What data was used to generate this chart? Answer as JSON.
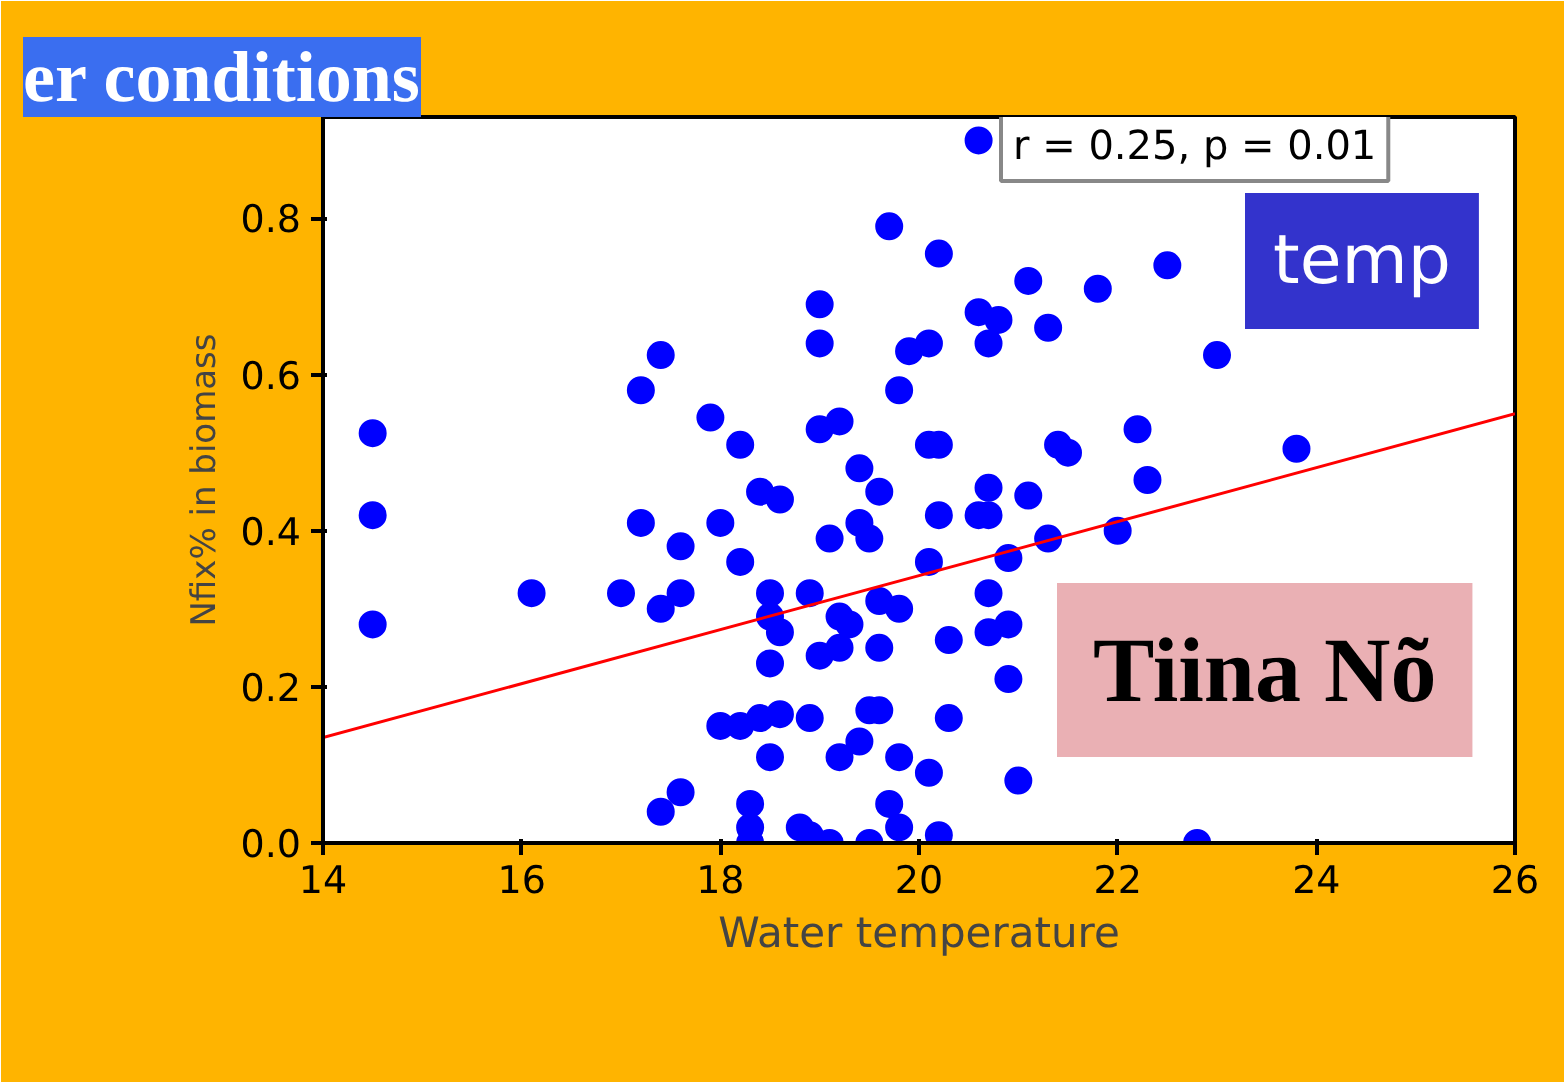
{
  "chart_data": {
    "type": "scatter",
    "title": "er conditions",
    "xlabel": "Water temperature",
    "ylabel": "Nfix% in biomass",
    "xlim": [
      14,
      26
    ],
    "ylim": [
      0,
      0.93
    ],
    "xticks": [
      14,
      16,
      18,
      20,
      22,
      24,
      26
    ],
    "yticks": [
      {
        "value": 0,
        "label": "0.0"
      },
      0.2,
      0.4,
      0.6,
      0.8
    ],
    "grid": false,
    "marker": "circle",
    "annotations": [
      "r = 0.25, p = 0.01",
      "temp",
      "Tiina Nõ"
    ],
    "series": [
      {
        "color": "#0000ff",
        "x": [
          14.5,
          14.5,
          14.5,
          16.1,
          17.0,
          17.2,
          17.4,
          17.2,
          17.4,
          17.6,
          17.6,
          17.9,
          18.0,
          17.4,
          17.6,
          18.2,
          18.4,
          18.2,
          18.0,
          18.2,
          18.4,
          18.5,
          18.5,
          18.5,
          18.3,
          18.3,
          18.6,
          19.0,
          19.0,
          19.0,
          19.2,
          19.4,
          18.9,
          19.1,
          18.6,
          18.5,
          18.6,
          18.9,
          19.0,
          19.2,
          19.2,
          19.3,
          19.4,
          19.5,
          19.6,
          18.8,
          18.9,
          19.2,
          19.4,
          19.5,
          19.7,
          20.2,
          19.8,
          19.9,
          20.1,
          20.1,
          20.2,
          19.6,
          19.6,
          19.8,
          19.6,
          20.1,
          20.3,
          20.3,
          20.1,
          19.8,
          19.7,
          19.8,
          20.2,
          20.6,
          20.6,
          20.8,
          20.7,
          21.1,
          21.3,
          21.8,
          22.5,
          20.7,
          20.7,
          20.6,
          21.4,
          21.5,
          21.1,
          21.3,
          20.9,
          20.7,
          20.7,
          20.9,
          20.9,
          21.0,
          20.2,
          22.2,
          22.3,
          22.0,
          23.0,
          23.8,
          22.8,
          18.3,
          19.1,
          19.5
        ],
        "values": [
          0.525,
          0.42,
          0.28,
          0.32,
          0.32,
          0.58,
          0.625,
          0.41,
          0.3,
          0.38,
          0.32,
          0.545,
          0.41,
          0.04,
          0.065,
          0.51,
          0.45,
          0.36,
          0.15,
          0.15,
          0.16,
          0.23,
          0.29,
          0.32,
          0.05,
          0.02,
          0.44,
          0.69,
          0.64,
          0.53,
          0.54,
          0.48,
          0.32,
          0.39,
          0.27,
          0.11,
          0.165,
          0.16,
          0.24,
          0.25,
          0.29,
          0.28,
          0.41,
          0.39,
          0.45,
          0.02,
          0.01,
          0.11,
          0.13,
          0.17,
          0.79,
          0.755,
          0.58,
          0.63,
          0.64,
          0.51,
          0.51,
          0.17,
          0.31,
          0.3,
          0.25,
          0.09,
          0.16,
          0.26,
          0.36,
          0.11,
          0.05,
          0.02,
          0.01,
          0.9,
          0.68,
          0.67,
          0.64,
          0.72,
          0.66,
          0.71,
          0.74,
          0.455,
          0.42,
          0.42,
          0.51,
          0.5,
          0.445,
          0.39,
          0.365,
          0.32,
          0.27,
          0.21,
          0.28,
          0.08,
          0.42,
          0.53,
          0.465,
          0.4,
          0.625,
          0.505,
          0.0,
          0.0,
          0.0,
          0.0
        ]
      },
      {
        "type": "line",
        "marker": "none",
        "color": "#ff0000",
        "x": [
          14,
          26
        ],
        "values": [
          0.135,
          0.55
        ]
      }
    ]
  }
}
